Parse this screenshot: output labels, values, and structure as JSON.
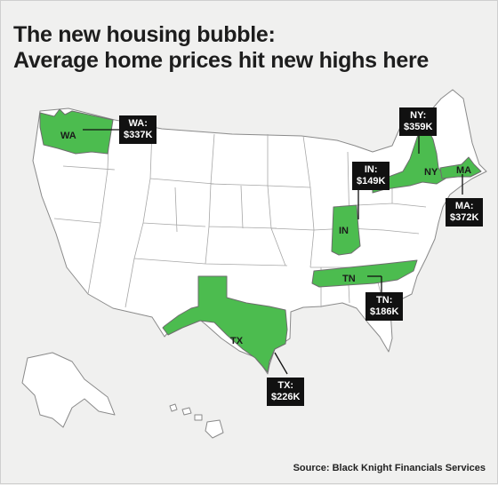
{
  "title": {
    "line1": "The new housing bubble:",
    "line2": "Average home prices hit new highs here"
  },
  "source": "Source: Black Knight Financials Services",
  "colors": {
    "highlight": "#4cbc4f",
    "state_fill": "#ffffff",
    "background": "#f0f0ef",
    "callout_bg": "#111111",
    "callout_text": "#ffffff"
  },
  "highlighted_states": [
    {
      "abbr": "WA",
      "label": "WA:",
      "price": "$337K"
    },
    {
      "abbr": "NY",
      "label": "NY:",
      "price": "$359K"
    },
    {
      "abbr": "IN",
      "label": "IN:",
      "price": "$149K"
    },
    {
      "abbr": "MA",
      "label": "MA:",
      "price": "$372K"
    },
    {
      "abbr": "TN",
      "label": "TN:",
      "price": "$186K"
    },
    {
      "abbr": "TX",
      "label": "TX:",
      "price": "$226K"
    }
  ]
}
